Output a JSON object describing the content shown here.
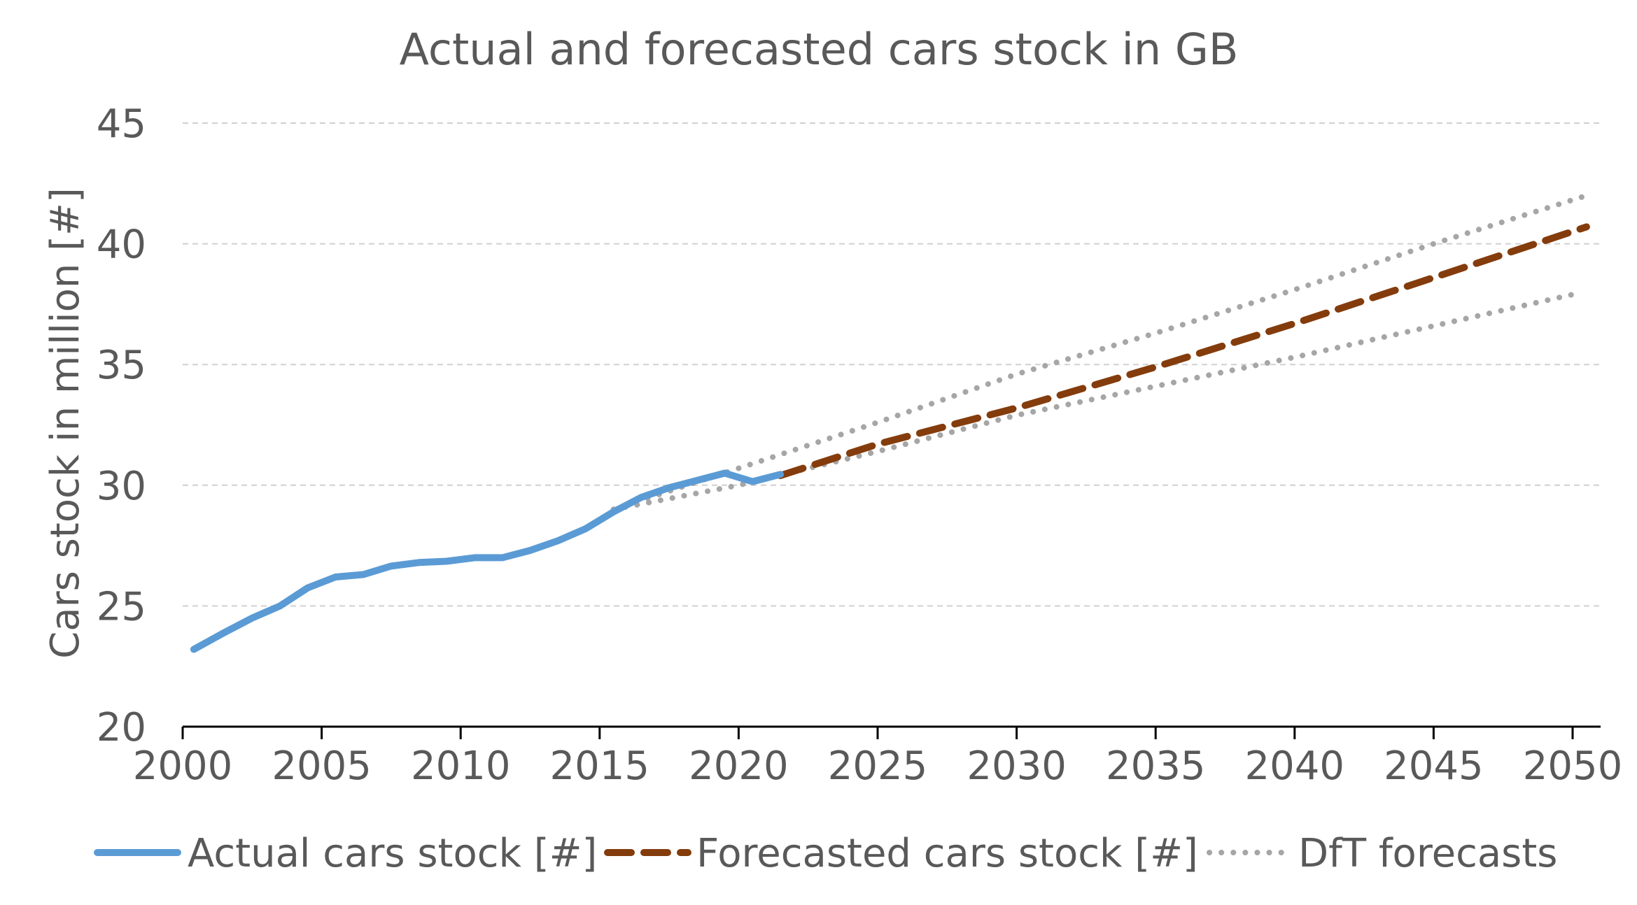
{
  "chart_data": {
    "type": "line",
    "title": "Actual and forecasted cars stock in GB",
    "xlabel": "",
    "ylabel": "Cars stock in million [#]",
    "xlim": [
      2000,
      2050
    ],
    "ylim": [
      20,
      45
    ],
    "x_ticks": [
      2000,
      2005,
      2010,
      2015,
      2020,
      2025,
      2030,
      2035,
      2040,
      2045,
      2050
    ],
    "y_ticks": [
      20,
      25,
      30,
      35,
      40,
      45
    ],
    "x_tick_labels": [
      "2000",
      "2005",
      "2010",
      "2015",
      "2020",
      "2025",
      "2030",
      "2035",
      "2040",
      "2045",
      "2050"
    ],
    "y_tick_labels": [
      "20",
      "25",
      "30",
      "35",
      "40",
      "45"
    ],
    "grid": "horizontal dashed",
    "legend_position": "bottom",
    "series": [
      {
        "name": "Actual cars stock [#]",
        "color": "#5B9BD5",
        "style": "solid",
        "points": [
          [
            2000.4,
            23.2
          ],
          [
            2001.5,
            23.9
          ],
          [
            2002.5,
            24.5
          ],
          [
            2003.5,
            25.0
          ],
          [
            2004.5,
            25.75
          ],
          [
            2005.5,
            26.2
          ],
          [
            2006.5,
            26.3
          ],
          [
            2007.5,
            26.65
          ],
          [
            2008.5,
            26.8
          ],
          [
            2009.5,
            26.85
          ],
          [
            2010.5,
            27.0
          ],
          [
            2011.5,
            27.0
          ],
          [
            2012.5,
            27.3
          ],
          [
            2013.5,
            27.7
          ],
          [
            2014.5,
            28.2
          ],
          [
            2015.5,
            28.9
          ],
          [
            2016.5,
            29.5
          ],
          [
            2017.5,
            29.9
          ],
          [
            2018.5,
            30.2
          ],
          [
            2019.5,
            30.5
          ],
          [
            2020.5,
            30.15
          ],
          [
            2021.5,
            30.45
          ]
        ]
      },
      {
        "name": "Forecasted cars stock [#]",
        "color": "#843C0C",
        "style": "dashed",
        "points": [
          [
            2021.5,
            30.4
          ],
          [
            2025,
            31.7
          ],
          [
            2030,
            33.2
          ],
          [
            2035,
            34.9
          ],
          [
            2040,
            36.7
          ],
          [
            2045,
            38.6
          ],
          [
            2050.5,
            40.7
          ]
        ]
      },
      {
        "name": "DfT forecasts",
        "color": "#A6A6A6",
        "style": "dotted",
        "upper": [
          [
            2015.5,
            29.0
          ],
          [
            2020,
            30.7
          ],
          [
            2025,
            32.6
          ],
          [
            2030,
            34.6
          ],
          [
            2035,
            36.3
          ],
          [
            2040,
            38.1
          ],
          [
            2045,
            40.0
          ],
          [
            2050.5,
            42.0
          ]
        ],
        "lower": [
          [
            2015.5,
            29.0
          ],
          [
            2020,
            30.0
          ],
          [
            2025,
            31.4
          ],
          [
            2030,
            32.9
          ],
          [
            2035,
            34.1
          ],
          [
            2040,
            35.3
          ],
          [
            2045,
            36.6
          ],
          [
            2050,
            37.9
          ]
        ]
      }
    ]
  }
}
